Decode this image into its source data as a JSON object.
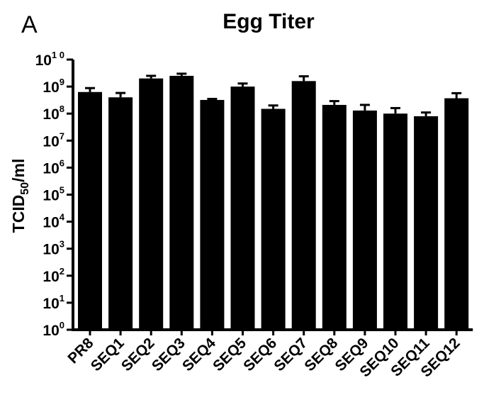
{
  "panel_label": "A",
  "chart_data": {
    "type": "bar",
    "title": "Egg Titer",
    "ylabel_main": "TCID",
    "ylabel_sub": "50",
    "ylabel_tail": "/ml",
    "xlabel": "",
    "yscale": "log",
    "ylim": [
      1,
      10000000000
    ],
    "yticks": [
      {
        "base": "10",
        "exp": "0"
      },
      {
        "base": "10",
        "exp": "1"
      },
      {
        "base": "10",
        "exp": "2"
      },
      {
        "base": "10",
        "exp": "3"
      },
      {
        "base": "10",
        "exp": "4"
      },
      {
        "base": "10",
        "exp": "5"
      },
      {
        "base": "10",
        "exp": "6"
      },
      {
        "base": "10",
        "exp": "7"
      },
      {
        "base": "10",
        "exp": "8"
      },
      {
        "base": "10",
        "exp": "9"
      },
      {
        "base": "10",
        "exp": "1 0"
      }
    ],
    "categories": [
      "PR8",
      "SEQ1",
      "SEQ2",
      "SEQ3",
      "SEQ4",
      "SEQ5",
      "SEQ6",
      "SEQ7",
      "SEQ8",
      "SEQ9",
      "SEQ10",
      "SEQ11",
      "SEQ12"
    ],
    "values": [
      630000000,
      400000000,
      2000000000,
      2500000000,
      320000000,
      1000000000,
      150000000,
      1600000000,
      210000000,
      130000000,
      100000000,
      80000000,
      370000000
    ],
    "error_upper": [
      880000000,
      580000000,
      2500000000,
      3000000000,
      350000000,
      1300000000,
      200000000,
      2400000000,
      290000000,
      210000000,
      160000000,
      110000000,
      570000000
    ],
    "bar_color": "#000000",
    "grid": false
  }
}
